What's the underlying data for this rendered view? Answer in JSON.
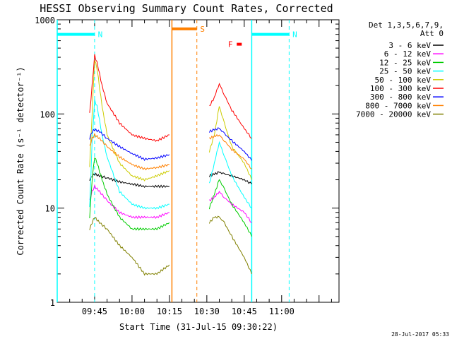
{
  "chart_data": {
    "type": "line",
    "title": "HESSI Observing Summary Count Rates, Corrected",
    "xlabel": "Start Time (31-Jul-15 09:30:22)",
    "ylabel": "Corrected Count Rate (s⁻¹ detector⁻¹)",
    "yscale": "log",
    "ylim": [
      1,
      1000
    ],
    "xlim": [
      "09:30",
      "11:23"
    ],
    "x_ticks": [
      "09:45",
      "10:00",
      "10:15",
      "10:30",
      "10:45",
      "11:00"
    ],
    "y_ticks": [
      "1",
      "10",
      "100",
      "1000"
    ],
    "timestamp": "28-Jul-2017 05:33",
    "legend": {
      "header": [
        "Det 1,3,5,6,7,9,",
        "Att 0"
      ],
      "placement": "right"
    },
    "series": [
      {
        "name": "3 - 6 keV",
        "color": "#000000",
        "segments": [
          [
            [
              "09:43",
              20
            ],
            [
              "09:44",
              22
            ],
            [
              "09:45",
              23
            ],
            [
              "09:47",
              22
            ],
            [
              "09:50",
              21
            ],
            [
              "09:55",
              19
            ],
            [
              "10:00",
              18
            ],
            [
              "10:05",
              17
            ],
            [
              "10:10",
              17
            ],
            [
              "10:15",
              17
            ]
          ],
          [
            [
              "10:31",
              22
            ],
            [
              "10:33",
              23
            ],
            [
              "10:35",
              24
            ],
            [
              "10:37",
              23
            ],
            [
              "10:40",
              22
            ],
            [
              "10:45",
              20
            ],
            [
              "10:48",
              18
            ]
          ]
        ]
      },
      {
        "name": "6 - 12 keV",
        "color": "#ff00ff",
        "segments": [
          [
            [
              "09:43",
              12
            ],
            [
              "09:44",
              15
            ],
            [
              "09:45",
              17
            ],
            [
              "09:47",
              15
            ],
            [
              "09:50",
              12
            ],
            [
              "09:55",
              9
            ],
            [
              "10:00",
              8
            ],
            [
              "10:05",
              8
            ],
            [
              "10:10",
              8
            ],
            [
              "10:15",
              9
            ]
          ],
          [
            [
              "10:31",
              12
            ],
            [
              "10:33",
              13
            ],
            [
              "10:35",
              15
            ],
            [
              "10:37",
              13
            ],
            [
              "10:40",
              11
            ],
            [
              "10:45",
              9
            ],
            [
              "10:48",
              7
            ]
          ]
        ]
      },
      {
        "name": "12 - 25 keV",
        "color": "#00cc00",
        "segments": [
          [
            [
              "09:43",
              8
            ],
            [
              "09:44",
              20
            ],
            [
              "09:45",
              35
            ],
            [
              "09:46",
              30
            ],
            [
              "09:48",
              20
            ],
            [
              "09:50",
              14
            ],
            [
              "09:55",
              8
            ],
            [
              "10:00",
              6
            ],
            [
              "10:05",
              6
            ],
            [
              "10:10",
              6
            ],
            [
              "10:15",
              7
            ]
          ],
          [
            [
              "10:31",
              10
            ],
            [
              "10:33",
              14
            ],
            [
              "10:35",
              20
            ],
            [
              "10:37",
              16
            ],
            [
              "10:40",
              11
            ],
            [
              "10:45",
              7
            ],
            [
              "10:48",
              5
            ]
          ]
        ]
      },
      {
        "name": "25 - 50 keV",
        "color": "#00ffff",
        "segments": [
          [
            [
              "09:43",
              10
            ],
            [
              "09:44",
              50
            ],
            [
              "09:45",
              140
            ],
            [
              "09:46",
              120
            ],
            [
              "09:48",
              60
            ],
            [
              "09:50",
              35
            ],
            [
              "09:55",
              15
            ],
            [
              "10:00",
              11
            ],
            [
              "10:05",
              10
            ],
            [
              "10:10",
              10
            ],
            [
              "10:15",
              11
            ]
          ],
          [
            [
              "10:31",
              18
            ],
            [
              "10:33",
              30
            ],
            [
              "10:35",
              50
            ],
            [
              "10:37",
              36
            ],
            [
              "10:40",
              22
            ],
            [
              "10:45",
              13
            ],
            [
              "10:48",
              10
            ]
          ]
        ]
      },
      {
        "name": "50 - 100 keV",
        "color": "#cccc00",
        "segments": [
          [
            [
              "09:43",
              28
            ],
            [
              "09:44",
              100
            ],
            [
              "09:45",
              380
            ],
            [
              "09:46",
              300
            ],
            [
              "09:48",
              120
            ],
            [
              "09:50",
              60
            ],
            [
              "09:55",
              30
            ],
            [
              "10:00",
              22
            ],
            [
              "10:05",
              20
            ],
            [
              "10:10",
              22
            ],
            [
              "10:15",
              25
            ]
          ],
          [
            [
              "10:31",
              40
            ],
            [
              "10:33",
              60
            ],
            [
              "10:35",
              120
            ],
            [
              "10:37",
              80
            ],
            [
              "10:40",
              45
            ],
            [
              "10:45",
              30
            ],
            [
              "10:48",
              20
            ]
          ]
        ]
      },
      {
        "name": "100 - 300 keV",
        "color": "#ff0000",
        "segments": [
          [
            [
              "09:43",
              100
            ],
            [
              "09:44",
              200
            ],
            [
              "09:45",
              420
            ],
            [
              "09:46",
              350
            ],
            [
              "09:48",
              200
            ],
            [
              "09:50",
              130
            ],
            [
              "09:55",
              80
            ],
            [
              "10:00",
              60
            ],
            [
              "10:05",
              55
            ],
            [
              "10:10",
              52
            ],
            [
              "10:15",
              60
            ]
          ],
          [
            [
              "10:31",
              120
            ],
            [
              "10:33",
              150
            ],
            [
              "10:35",
              210
            ],
            [
              "10:37",
              160
            ],
            [
              "10:40",
              110
            ],
            [
              "10:45",
              70
            ],
            [
              "10:48",
              55
            ]
          ]
        ]
      },
      {
        "name": "300 - 800 keV",
        "color": "#0000ff",
        "segments": [
          [
            [
              "09:43",
              55
            ],
            [
              "09:44",
              65
            ],
            [
              "09:45",
              68
            ],
            [
              "09:47",
              65
            ],
            [
              "09:50",
              55
            ],
            [
              "09:55",
              45
            ],
            [
              "10:00",
              38
            ],
            [
              "10:05",
              33
            ],
            [
              "10:10",
              34
            ],
            [
              "10:15",
              37
            ]
          ],
          [
            [
              "10:31",
              65
            ],
            [
              "10:33",
              68
            ],
            [
              "10:35",
              70
            ],
            [
              "10:37",
              62
            ],
            [
              "10:40",
              52
            ],
            [
              "10:45",
              40
            ],
            [
              "10:48",
              32
            ]
          ]
        ]
      },
      {
        "name": "800 - 7000 keV",
        "color": "#ff8000",
        "segments": [
          [
            [
              "09:43",
              45
            ],
            [
              "09:44",
              55
            ],
            [
              "09:45",
              60
            ],
            [
              "09:47",
              55
            ],
            [
              "09:50",
              45
            ],
            [
              "09:55",
              35
            ],
            [
              "10:00",
              29
            ],
            [
              "10:05",
              26
            ],
            [
              "10:10",
              27
            ],
            [
              "10:15",
              29
            ]
          ],
          [
            [
              "10:31",
              55
            ],
            [
              "10:33",
              58
            ],
            [
              "10:35",
              60
            ],
            [
              "10:37",
              52
            ],
            [
              "10:40",
              42
            ],
            [
              "10:45",
              33
            ],
            [
              "10:48",
              26
            ]
          ]
        ]
      },
      {
        "name": "7000 - 20000 keV",
        "color": "#808000",
        "segments": [
          [
            [
              "09:43",
              6
            ],
            [
              "09:44",
              7
            ],
            [
              "09:45",
              8
            ],
            [
              "09:47",
              7
            ],
            [
              "09:50",
              6
            ],
            [
              "09:55",
              4
            ],
            [
              "10:00",
              3
            ],
            [
              "10:05",
              2
            ],
            [
              "10:10",
              2
            ],
            [
              "10:15",
              2.5
            ]
          ],
          [
            [
              "10:31",
              7
            ],
            [
              "10:33",
              8
            ],
            [
              "10:35",
              8
            ],
            [
              "10:37",
              7
            ],
            [
              "10:40",
              5
            ],
            [
              "10:45",
              3
            ],
            [
              "10:48",
              2
            ]
          ]
        ]
      }
    ],
    "flags": [
      {
        "label": "N",
        "color": "#00ffff",
        "bar_start": "09:30",
        "bar_end": "09:45",
        "value": 700,
        "start_marker": "09:30",
        "end_marker": "09:45"
      },
      {
        "label": "S",
        "color": "#ff8000",
        "bar_start": "10:16",
        "bar_end": "10:26",
        "value": 800,
        "start_marker": "10:16",
        "end_marker": "10:26"
      },
      {
        "label": "N",
        "color": "#00ffff",
        "bar_start": "10:48",
        "bar_end": "11:03",
        "value": 700,
        "start_marker": "10:48",
        "end_marker": "11:03"
      },
      {
        "label": "F",
        "color": "#ff0000",
        "bar_start": "10:42",
        "bar_end": "10:44",
        "value": 550,
        "start_marker": "",
        "end_marker": ""
      }
    ]
  }
}
